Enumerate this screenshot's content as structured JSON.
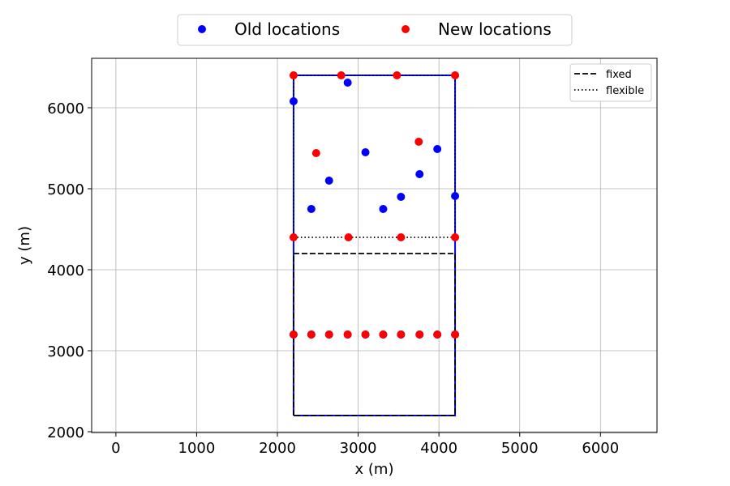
{
  "chart_data": {
    "type": "scatter",
    "xlabel": "x (m)",
    "ylabel": "y (m)",
    "xlim": [
      -300,
      6700
    ],
    "ylim": [
      1990,
      6610
    ],
    "xticks": [
      0,
      1000,
      2000,
      3000,
      4000,
      5000,
      6000
    ],
    "yticks": [
      2000,
      3000,
      4000,
      5000,
      6000
    ],
    "grid": true,
    "series": [
      {
        "name": "Old locations",
        "color": "#0000ff",
        "points": [
          [
            2200,
            6080
          ],
          [
            2870,
            6310
          ],
          [
            3090,
            5450
          ],
          [
            3980,
            5490
          ],
          [
            3760,
            5180
          ],
          [
            2640,
            5100
          ],
          [
            3530,
            4900
          ],
          [
            4200,
            4910
          ],
          [
            2420,
            4750
          ],
          [
            3310,
            4750
          ],
          [
            2200,
            3200
          ],
          [
            2420,
            3200
          ],
          [
            2640,
            3200
          ],
          [
            2870,
            3200
          ],
          [
            3090,
            3200
          ],
          [
            3310,
            3200
          ],
          [
            3530,
            3200
          ],
          [
            3760,
            3200
          ],
          [
            3980,
            3200
          ],
          [
            4200,
            3200
          ]
        ]
      },
      {
        "name": "New locations",
        "color": "#ff0000",
        "points": [
          [
            2200,
            6400
          ],
          [
            2790,
            6400
          ],
          [
            3480,
            6400
          ],
          [
            4200,
            6400
          ],
          [
            2480,
            5440
          ],
          [
            3750,
            5580
          ],
          [
            2200,
            4400
          ],
          [
            2880,
            4400
          ],
          [
            3530,
            4400
          ],
          [
            4200,
            4400
          ],
          [
            2200,
            3200
          ],
          [
            2420,
            3200
          ],
          [
            2640,
            3200
          ],
          [
            2870,
            3200
          ],
          [
            3090,
            3200
          ],
          [
            3310,
            3200
          ],
          [
            3530,
            3200
          ],
          [
            3760,
            3200
          ],
          [
            3980,
            3200
          ],
          [
            4200,
            3200
          ]
        ]
      }
    ],
    "lines": [
      {
        "name": "fixed",
        "style": "dashed",
        "color": "#000000",
        "points": [
          [
            2200,
            2200
          ],
          [
            2200,
            4200
          ],
          [
            4200,
            4200
          ],
          [
            4200,
            2200
          ],
          [
            2200,
            2200
          ]
        ]
      },
      {
        "name": "flexible",
        "style": "dotted",
        "color": "#000000",
        "points": [
          [
            2200,
            4400
          ],
          [
            4200,
            4400
          ],
          [
            4200,
            6400
          ],
          [
            2200,
            6400
          ],
          [
            2200,
            4400
          ]
        ]
      }
    ],
    "boundary": {
      "color": "#0000ff",
      "points": [
        [
          2200,
          2200
        ],
        [
          4200,
          2200
        ],
        [
          4200,
          6400
        ],
        [
          2200,
          6400
        ],
        [
          2200,
          2200
        ]
      ]
    },
    "legend_top": {
      "placement": "top-center"
    },
    "legend_inner": {
      "placement": "top-right"
    }
  }
}
